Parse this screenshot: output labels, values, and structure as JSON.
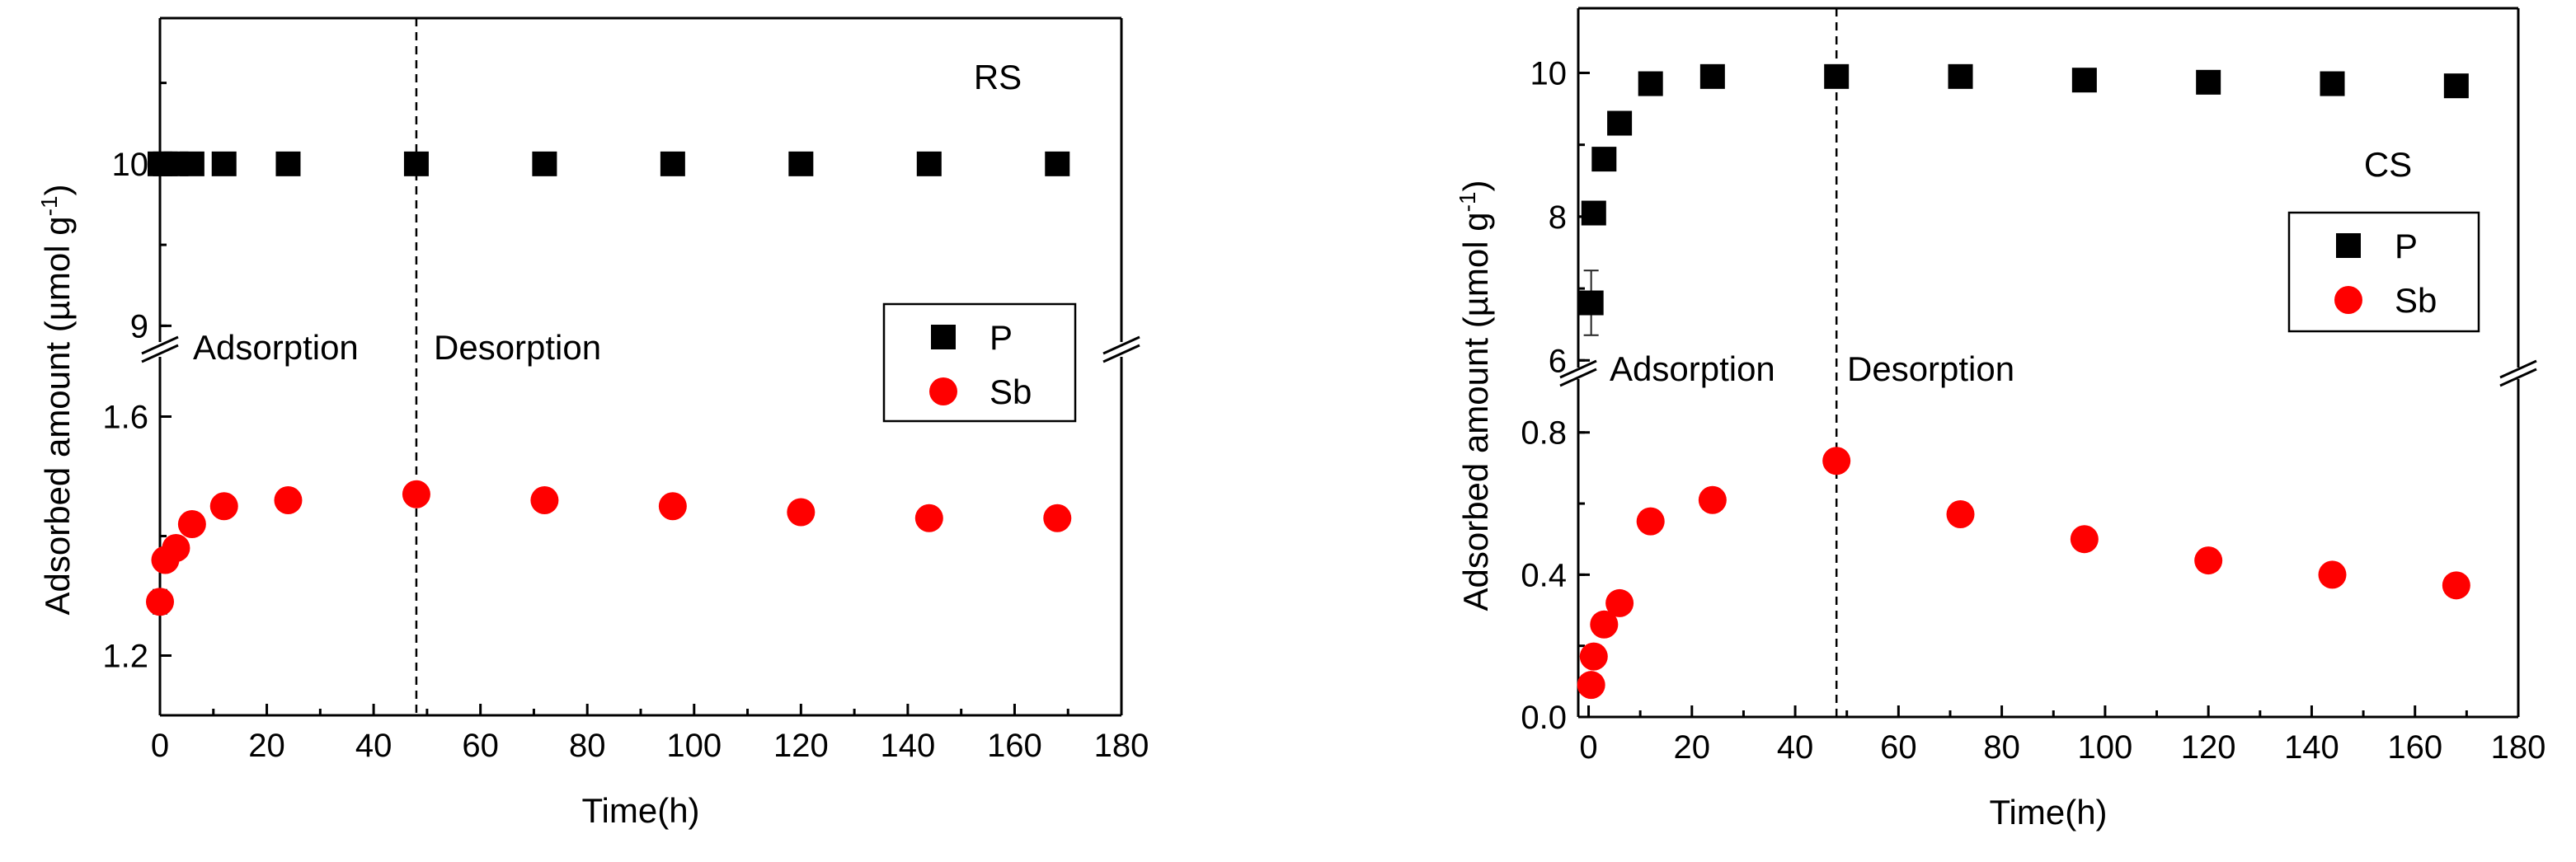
{
  "chart_data": [
    {
      "type": "scatter",
      "panel_label": "RS",
      "xlabel": "Time(h)",
      "ylabel": "Adsorbed amount (µmol g",
      "ylabel_sup": "-1",
      "ylabel_close": ")",
      "xlim": [
        0,
        180
      ],
      "xticks": [
        0,
        20,
        40,
        60,
        80,
        100,
        120,
        140,
        160,
        180
      ],
      "upper_ylim": [
        8.9,
        10.9
      ],
      "upper_yticks": [
        9,
        10
      ],
      "lower_ylim": [
        1.1,
        1.7
      ],
      "lower_yticks": [
        1.2,
        1.6
      ],
      "divider_x": 48,
      "annotation_left": "Adsorption",
      "annotation_right": "Desorption",
      "legend": [
        "P",
        "Sb"
      ],
      "series": [
        {
          "name": "P",
          "marker": "square",
          "color": "#000000",
          "x": [
            0,
            1,
            3,
            6,
            12,
            24,
            48,
            72,
            96,
            120,
            144,
            168
          ],
          "y": [
            10.0,
            10.0,
            10.0,
            10.0,
            10.0,
            10.0,
            10.0,
            10.0,
            10.0,
            10.0,
            10.0,
            10.0
          ]
        },
        {
          "name": "Sb",
          "marker": "circle",
          "color": "#ff0000",
          "x": [
            0,
            1,
            3,
            6,
            12,
            24,
            48,
            72,
            96,
            120,
            144,
            168
          ],
          "y": [
            1.29,
            1.36,
            1.38,
            1.42,
            1.45,
            1.46,
            1.47,
            1.46,
            1.45,
            1.44,
            1.43,
            1.43
          ],
          "err": [
            0.02,
            0.01,
            0.01,
            0.01,
            0.0,
            0.0,
            0.0,
            0.0,
            0.0,
            0.0,
            0.0,
            0.0
          ]
        }
      ]
    },
    {
      "type": "scatter",
      "panel_label": "CS",
      "xlabel": "Time(h)",
      "ylabel": "Adsorbed amount (µmol g",
      "ylabel_sup": "-1",
      "ylabel_close": ")",
      "xlim": [
        -2,
        180
      ],
      "xticks": [
        0,
        20,
        40,
        60,
        80,
        100,
        120,
        140,
        160,
        180
      ],
      "upper_ylim": [
        5.9,
        10.9
      ],
      "upper_yticks": [
        6,
        8,
        10
      ],
      "lower_ylim": [
        0,
        0.95
      ],
      "lower_yticks": [
        0.0,
        0.4,
        0.8
      ],
      "divider_x": 48,
      "annotation_left": "Adsorption",
      "annotation_right": "Desorption",
      "legend": [
        "P",
        "Sb"
      ],
      "series": [
        {
          "name": "P",
          "marker": "square",
          "color": "#000000",
          "x": [
            0.5,
            1,
            3,
            6,
            12,
            24,
            48,
            72,
            96,
            120,
            144,
            168
          ],
          "y": [
            6.8,
            8.05,
            8.8,
            9.3,
            9.85,
            9.95,
            9.95,
            9.95,
            9.9,
            9.87,
            9.85,
            9.82
          ],
          "err": [
            0.45,
            0.0,
            0.0,
            0.0,
            0.0,
            0.0,
            0.0,
            0.0,
            0.0,
            0.0,
            0.0,
            0.0
          ]
        },
        {
          "name": "Sb",
          "marker": "circle",
          "color": "#ff0000",
          "x": [
            0.5,
            1,
            3,
            6,
            12,
            24,
            48,
            72,
            96,
            120,
            144,
            168
          ],
          "y": [
            0.09,
            0.17,
            0.26,
            0.32,
            0.55,
            0.61,
            0.72,
            0.57,
            0.5,
            0.44,
            0.4,
            0.37
          ],
          "err": [
            0.0,
            0.0,
            0.03,
            0.03,
            0.0,
            0.0,
            0.0,
            0.0,
            0.0,
            0.0,
            0.0,
            0.0
          ]
        }
      ]
    }
  ]
}
